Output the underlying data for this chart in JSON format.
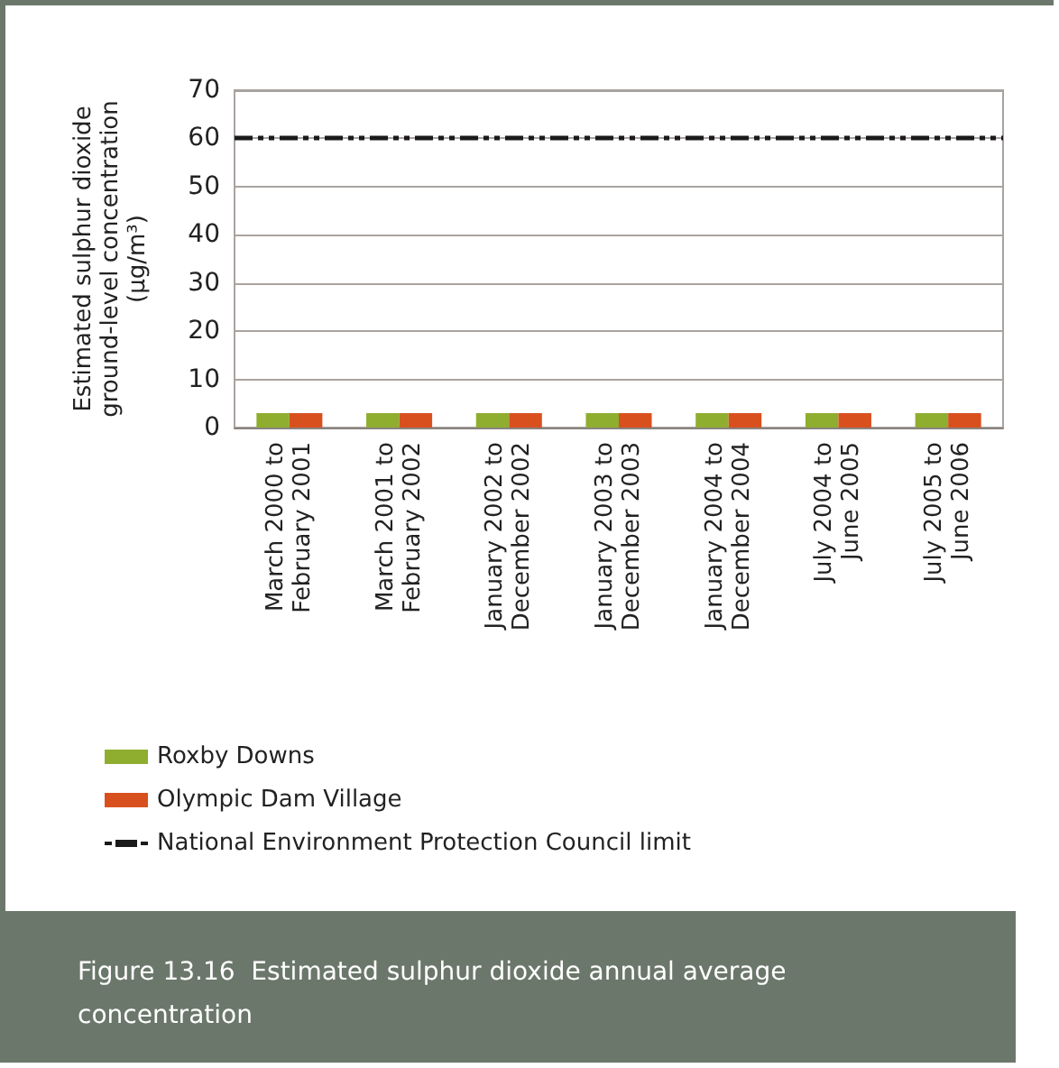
{
  "chart_data": {
    "type": "bar",
    "title": "Figure 13.16  Estimated sulphur dioxide annual average concentration",
    "ylabel": "Estimated sulphur dioxide\nground-level concentration\n(µg/m³)",
    "categories": [
      "March 2000 to\nFebruary 2001",
      "March 2001 to\nFebruary 2002",
      "January 2002 to\nDecember 2002",
      "January 2003 to\nDecember 2003",
      "January 2004 to\nDecember 2004",
      "July 2004 to\nJune 2005",
      "July 2005 to\nJune 2006"
    ],
    "series": [
      {
        "name": "Roxby Downs",
        "color": "#8fae2f",
        "values": [
          3,
          3,
          3,
          3,
          3,
          3,
          3
        ]
      },
      {
        "name": "Olympic Dam Village",
        "color": "#d9501f",
        "values": [
          3,
          3,
          3,
          3,
          3,
          3,
          3
        ]
      }
    ],
    "ref_lines": [
      {
        "axis": "y",
        "value": 60,
        "label": "National Environment Protection Council limit",
        "color": "#1a1a1a",
        "line_style": "dashdot"
      }
    ],
    "ylim": [
      0,
      70
    ],
    "yticks": [
      0,
      10,
      20,
      30,
      40,
      50,
      60,
      70
    ],
    "grid": "y",
    "legend": "bottom left"
  }
}
